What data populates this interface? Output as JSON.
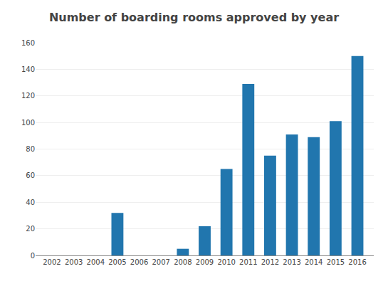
{
  "chart_data": {
    "type": "bar",
    "title": "Number of boarding rooms approved by year",
    "x": [
      2002,
      2003,
      2004,
      2005,
      2006,
      2007,
      2008,
      2009,
      2010,
      2011,
      2012,
      2013,
      2014,
      2015,
      2016
    ],
    "values": [
      0,
      0,
      0,
      32,
      0,
      0,
      5,
      22,
      65,
      129,
      75,
      91,
      89,
      101,
      150
    ],
    "color": "#2176ae",
    "xlim": [
      2001.25,
      2016.75
    ],
    "xticks": [
      2002,
      2003,
      2004,
      2005,
      2006,
      2007,
      2008,
      2009,
      2010,
      2011,
      2012,
      2013,
      2014,
      2015,
      2016
    ],
    "ylim": [
      0,
      160
    ],
    "yticks": [
      0,
      20,
      40,
      60,
      80,
      100,
      120,
      140,
      160
    ],
    "grid": true
  }
}
